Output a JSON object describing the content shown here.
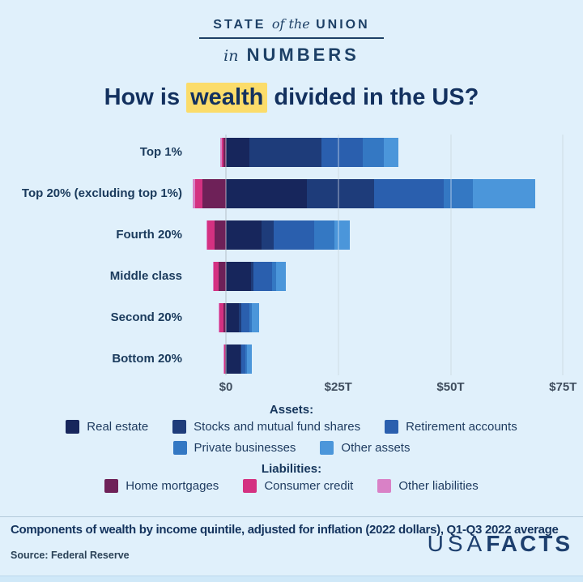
{
  "masthead": {
    "state": "STATE",
    "of_the": "of the",
    "union": "UNION",
    "in": "in",
    "numbers": "NUMBERS"
  },
  "title": {
    "pre": "How is ",
    "highlight": "wealth",
    "post": " divided in the US?",
    "highlight_color": "#fbdc6a"
  },
  "chart_data": {
    "type": "bar",
    "orientation": "horizontal",
    "stacked": true,
    "units": "USD trillions",
    "title": "How is wealth divided in the US?",
    "categories": [
      "Top 1%",
      "Top 20% (excluding top 1%)",
      "Fourth 20%",
      "Middle class",
      "Second 20%",
      "Bottom 20%"
    ],
    "series": [
      {
        "name": "Real estate",
        "group": "assets",
        "color": "#17265c",
        "values": [
          5.2,
          18.1,
          7.9,
          5.6,
          2.9,
          3.2
        ]
      },
      {
        "name": "Stocks and mutual fund shares",
        "group": "assets",
        "color": "#1e3c7a",
        "values": [
          16.1,
          14.9,
          2.7,
          0.6,
          0.5,
          0.2
        ]
      },
      {
        "name": "Retirement accounts",
        "group": "assets",
        "color": "#2a5fae",
        "values": [
          9.2,
          15.4,
          9.0,
          4.1,
          1.9,
          0.9
        ]
      },
      {
        "name": "Private businesses",
        "group": "assets",
        "color": "#3478c3",
        "values": [
          4.6,
          6.5,
          4.5,
          0.8,
          0.4,
          0.3
        ]
      },
      {
        "name": "Other assets",
        "group": "assets",
        "color": "#4b96da",
        "values": [
          3.3,
          14.0,
          3.4,
          2.3,
          1.7,
          1.2
        ]
      },
      {
        "name": "Home mortgages",
        "group": "liabilities",
        "color": "#6e2158",
        "values": [
          -0.6,
          -5.2,
          -2.5,
          -1.6,
          -0.5,
          -0.15
        ]
      },
      {
        "name": "Consumer credit",
        "group": "liabilities",
        "color": "#d43181",
        "values": [
          -0.3,
          -1.6,
          -1.6,
          -1.1,
          -1.1,
          -0.4
        ]
      },
      {
        "name": "Other liabilities",
        "group": "liabilities",
        "color": "#d981c6",
        "values": [
          -0.35,
          -0.6,
          -0.3,
          -0.2,
          -0.1,
          -0.05
        ]
      }
    ],
    "x_axis": {
      "ticks": [
        {
          "label": "$0",
          "value": 0
        },
        {
          "label": "$25T",
          "value": 25
        },
        {
          "label": "$50T",
          "value": 50
        },
        {
          "label": "$75T",
          "value": 75
        }
      ],
      "range_trillions": [
        -8,
        78
      ],
      "grid": true,
      "legend_position": "bottom"
    }
  },
  "legend": {
    "assets_header": "Assets:",
    "liabilities_header": "Liabilities:",
    "asset_rows": [
      [
        "Real estate",
        "Stocks and mutual fund shares",
        "Retirement accounts"
      ],
      [
        "Private businesses",
        "Other assets"
      ]
    ],
    "liability_rows": [
      [
        "Home mortgages",
        "Consumer credit",
        "Other liabilities"
      ]
    ]
  },
  "footer": {
    "caption": "Components of wealth by income quintile, adjusted for inflation (2022 dollars), Q1-Q3 2022 average",
    "source": "Source: Federal Reserve",
    "logo_usa": "USA",
    "logo_facts": "FACTS"
  }
}
